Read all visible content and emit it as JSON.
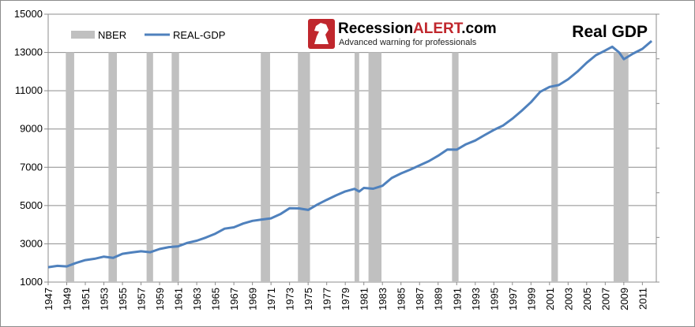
{
  "chart_data": {
    "type": "line",
    "title": "Real GDP",
    "xlabel": "",
    "ylabel": "",
    "xlim": [
      1947,
      2012.5
    ],
    "ylim": [
      1000,
      15000
    ],
    "yticks": [
      1000,
      3000,
      5000,
      7000,
      9000,
      11000,
      13000,
      15000
    ],
    "xticks": [
      "1947",
      "1949",
      "1951",
      "1953",
      "1955",
      "1957",
      "1959",
      "1961",
      "1963",
      "1965",
      "1967",
      "1969",
      "1971",
      "1973",
      "1975",
      "1977",
      "1979",
      "1981",
      "1983",
      "1985",
      "1987",
      "1989",
      "1991",
      "1993",
      "1995",
      "1997",
      "1999",
      "2001",
      "2003",
      "2005",
      "2007",
      "2009",
      "2011"
    ],
    "grid": "horizontal",
    "legend_position": "top-left",
    "legend": [
      {
        "name": "NBER",
        "kind": "bar",
        "color": "#c0c0c0"
      },
      {
        "name": "REAL-GDP",
        "kind": "line",
        "color": "#4f81bd"
      }
    ],
    "recessions": [
      [
        1948.9,
        1949.8
      ],
      [
        1953.5,
        1954.4
      ],
      [
        1957.6,
        1958.3
      ],
      [
        1960.3,
        1961.1
      ],
      [
        1969.9,
        1970.9
      ],
      [
        1973.9,
        1975.2
      ],
      [
        1980.0,
        1980.5
      ],
      [
        1981.5,
        1982.9
      ],
      [
        1990.5,
        1991.2
      ],
      [
        2001.2,
        2001.9
      ],
      [
        2007.9,
        2009.5
      ]
    ],
    "series": [
      {
        "name": "REAL-GDP",
        "color": "#4f81bd",
        "x": [
          1947,
          1948,
          1949,
          1950,
          1951,
          1952,
          1953,
          1954,
          1955,
          1956,
          1957,
          1958,
          1959,
          1960,
          1961,
          1962,
          1963,
          1964,
          1965,
          1966,
          1967,
          1968,
          1969,
          1970,
          1971,
          1972,
          1973,
          1974,
          1975,
          1976,
          1977,
          1978,
          1979,
          1980,
          1980.5,
          1981,
          1982,
          1983,
          1984,
          1985,
          1986,
          1987,
          1988,
          1989,
          1990,
          1991,
          1992,
          1993,
          1994,
          1995,
          1996,
          1997,
          1998,
          1999,
          2000,
          2001,
          2002,
          2003,
          2004,
          2005,
          2006,
          2007,
          2007.75,
          2008.5,
          2009,
          2010,
          2011,
          2012
        ],
        "values": [
          1780,
          1850,
          1820,
          2000,
          2150,
          2220,
          2330,
          2270,
          2480,
          2550,
          2610,
          2560,
          2730,
          2830,
          2870,
          3050,
          3160,
          3330,
          3530,
          3790,
          3860,
          4060,
          4200,
          4270,
          4330,
          4550,
          4860,
          4850,
          4770,
          5050,
          5300,
          5530,
          5740,
          5870,
          5730,
          5920,
          5880,
          6030,
          6440,
          6680,
          6880,
          7100,
          7320,
          7600,
          7930,
          7920,
          8200,
          8400,
          8680,
          8950,
          9180,
          9540,
          9950,
          10400,
          10950,
          11200,
          11300,
          11600,
          12000,
          12460,
          12860,
          13100,
          13300,
          13000,
          12650,
          12940,
          13190,
          13600
        ]
      }
    ]
  },
  "brand": {
    "name_part1": "Recession",
    "name_part2": "ALERT",
    "name_part3": ".com",
    "tagline": "Advanced warning for professionals",
    "logo_icon": "chess-knight-icon",
    "color_primary": "#000000",
    "color_accent": "#c0272d"
  }
}
